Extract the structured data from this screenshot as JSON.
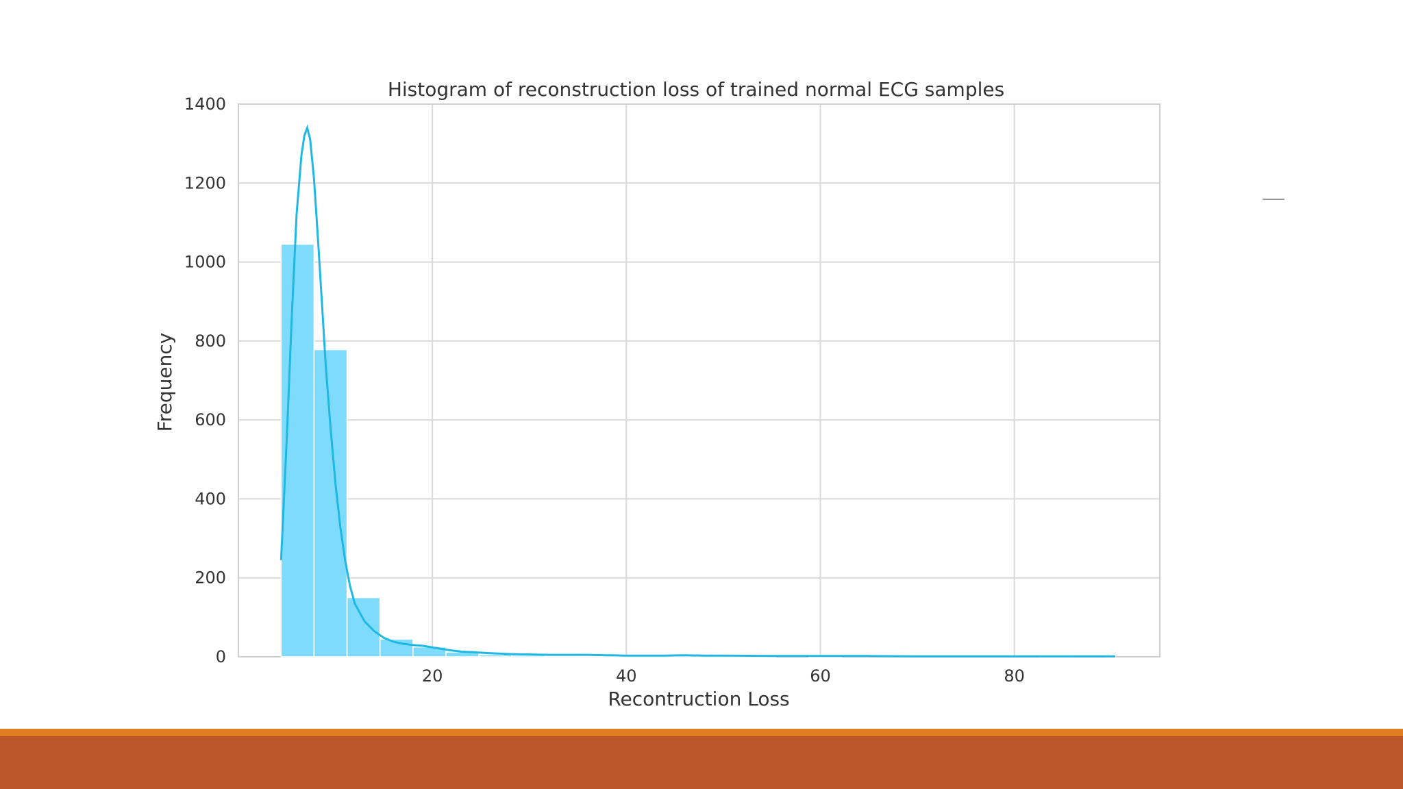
{
  "slide": {
    "band_colors": {
      "stripe": "#e07d1e",
      "band": "#bb562a"
    }
  },
  "chart_data": {
    "type": "bar",
    "title": "Histogram of reconstruction loss of trained normal ECG samples",
    "xlabel": "Recontruction Loss",
    "ylabel": "Frequency",
    "xlim": [
      0,
      95
    ],
    "ylim": [
      0,
      1400
    ],
    "xticks": [
      20,
      40,
      60,
      80
    ],
    "yticks": [
      0,
      200,
      400,
      600,
      800,
      1000,
      1200,
      1400
    ],
    "grid": true,
    "bar_color": "#7fdbfb",
    "kde_color": "#1fb8e4",
    "bins": [
      {
        "x0": 4.4,
        "x1": 7.8,
        "count": 1045
      },
      {
        "x0": 7.8,
        "x1": 11.2,
        "count": 778
      },
      {
        "x0": 11.2,
        "x1": 14.6,
        "count": 150
      },
      {
        "x0": 14.6,
        "x1": 18.0,
        "count": 45
      },
      {
        "x0": 18.0,
        "x1": 21.4,
        "count": 25
      },
      {
        "x0": 21.4,
        "x1": 24.8,
        "count": 12
      },
      {
        "x0": 24.8,
        "x1": 28.2,
        "count": 5
      },
      {
        "x0": 28.2,
        "x1": 31.6,
        "count": 4
      },
      {
        "x0": 31.6,
        "x1": 35.0,
        "count": 2
      },
      {
        "x0": 35.0,
        "x1": 38.4,
        "count": 2
      },
      {
        "x0": 38.4,
        "x1": 41.8,
        "count": 1
      },
      {
        "x0": 41.8,
        "x1": 45.2,
        "count": 1
      },
      {
        "x0": 45.2,
        "x1": 48.6,
        "count": 2
      },
      {
        "x0": 48.6,
        "x1": 52.0,
        "count": 1
      },
      {
        "x0": 52.0,
        "x1": 55.4,
        "count": 1
      },
      {
        "x0": 55.4,
        "x1": 58.8,
        "count": 0
      },
      {
        "x0": 58.8,
        "x1": 62.2,
        "count": 1
      },
      {
        "x0": 62.2,
        "x1": 65.6,
        "count": 0
      },
      {
        "x0": 65.6,
        "x1": 69.0,
        "count": 0
      },
      {
        "x0": 69.0,
        "x1": 72.4,
        "count": 0
      },
      {
        "x0": 72.4,
        "x1": 75.8,
        "count": 0
      },
      {
        "x0": 75.8,
        "x1": 79.2,
        "count": 0
      },
      {
        "x0": 79.2,
        "x1": 82.6,
        "count": 0
      },
      {
        "x0": 82.6,
        "x1": 86.0,
        "count": 1
      },
      {
        "x0": 86.0,
        "x1": 89.4,
        "count": 0
      },
      {
        "x0": 89.4,
        "x1": 90.4,
        "count": 1
      }
    ],
    "kde": {
      "x": [
        4.4,
        5.0,
        5.5,
        6.0,
        6.5,
        6.8,
        7.1,
        7.4,
        7.8,
        8.2,
        8.6,
        9.0,
        9.5,
        10.0,
        10.5,
        11.0,
        11.5,
        12.0,
        13.0,
        14.0,
        15.0,
        16.0,
        17.0,
        18.0,
        19.0,
        20.0,
        21.0,
        22.0,
        23.0,
        24.0,
        26.0,
        28.0,
        30.0,
        32.0,
        34.0,
        36.0,
        38.0,
        40.0,
        42.0,
        44.0,
        46.0,
        48.0,
        50.0,
        55.0,
        60.0,
        65.0,
        70.0,
        75.0,
        80.0,
        85.0,
        90.4
      ],
      "y": [
        245,
        560,
        860,
        1120,
        1270,
        1320,
        1340,
        1310,
        1210,
        1060,
        900,
        740,
        580,
        440,
        330,
        245,
        180,
        135,
        90,
        65,
        48,
        38,
        33,
        30,
        28,
        24,
        20,
        16,
        13,
        12,
        9,
        7,
        6,
        5,
        5,
        5,
        4,
        3,
        3,
        3,
        4,
        3,
        3,
        2,
        2,
        2,
        1,
        1,
        1,
        1,
        1
      ]
    }
  }
}
